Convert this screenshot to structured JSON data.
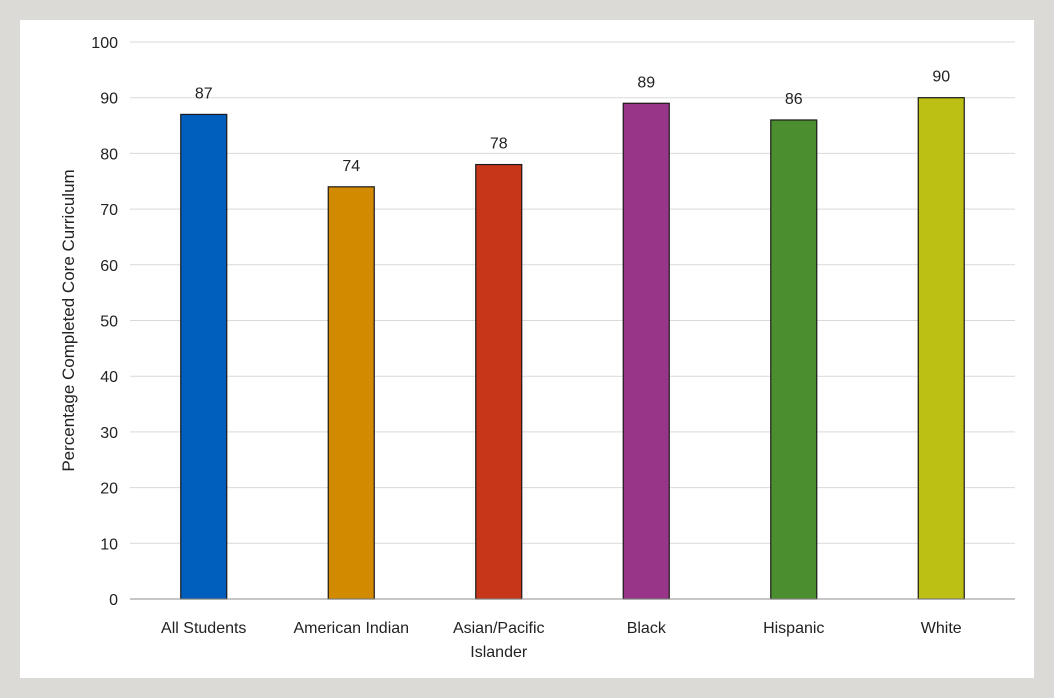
{
  "chart_data": {
    "type": "bar",
    "title": "",
    "xlabel": "",
    "ylabel": "Percentage Completed Core Curriculum",
    "categories": [
      [
        "All Students"
      ],
      [
        "American Indian"
      ],
      [
        "Asian/Pacific",
        "Islander"
      ],
      [
        "Black"
      ],
      [
        "Hispanic"
      ],
      [
        "White"
      ]
    ],
    "values": [
      87,
      74,
      78,
      89,
      86,
      90
    ],
    "colors": [
      "#005ebc",
      "#d28a00",
      "#c8361a",
      "#983589",
      "#4a8e2f",
      "#bcc014"
    ],
    "ylim": [
      0,
      100
    ],
    "yticks": [
      0,
      10,
      20,
      30,
      40,
      50,
      60,
      70,
      80,
      90,
      100
    ],
    "grid": true,
    "legend": "none",
    "data_labels": true
  }
}
